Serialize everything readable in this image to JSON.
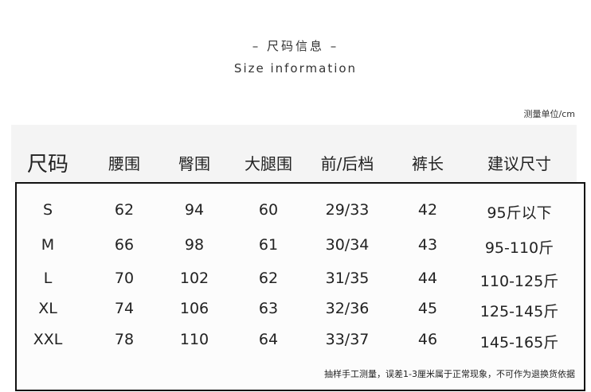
{
  "title_cn": "– 尺码信息 –",
  "title_en": "Size information",
  "unit": "测量单位/cm",
  "headers": [
    "尺码",
    "腰围",
    "臀围",
    "大腿围",
    "前/后档",
    "裤长",
    "建议尺寸"
  ],
  "rows": [
    [
      "S",
      "62",
      "94",
      "60",
      "29/33",
      "42",
      "95斤以下"
    ],
    [
      "M",
      "66",
      "98",
      "61",
      "30/34",
      "43",
      "95-110斤"
    ],
    [
      "L",
      "70",
      "102",
      "62",
      "31/35",
      "44",
      "110-125斤"
    ],
    [
      "XL",
      "74",
      "106",
      "63",
      "32/36",
      "45",
      "125-145斤"
    ],
    [
      "XXL",
      "78",
      "110",
      "64",
      "33/37",
      "46",
      "145-165斤"
    ]
  ],
  "note": "抽样手工测量，误差1-3厘米属于正常现象，不可作为退换货依据"
}
